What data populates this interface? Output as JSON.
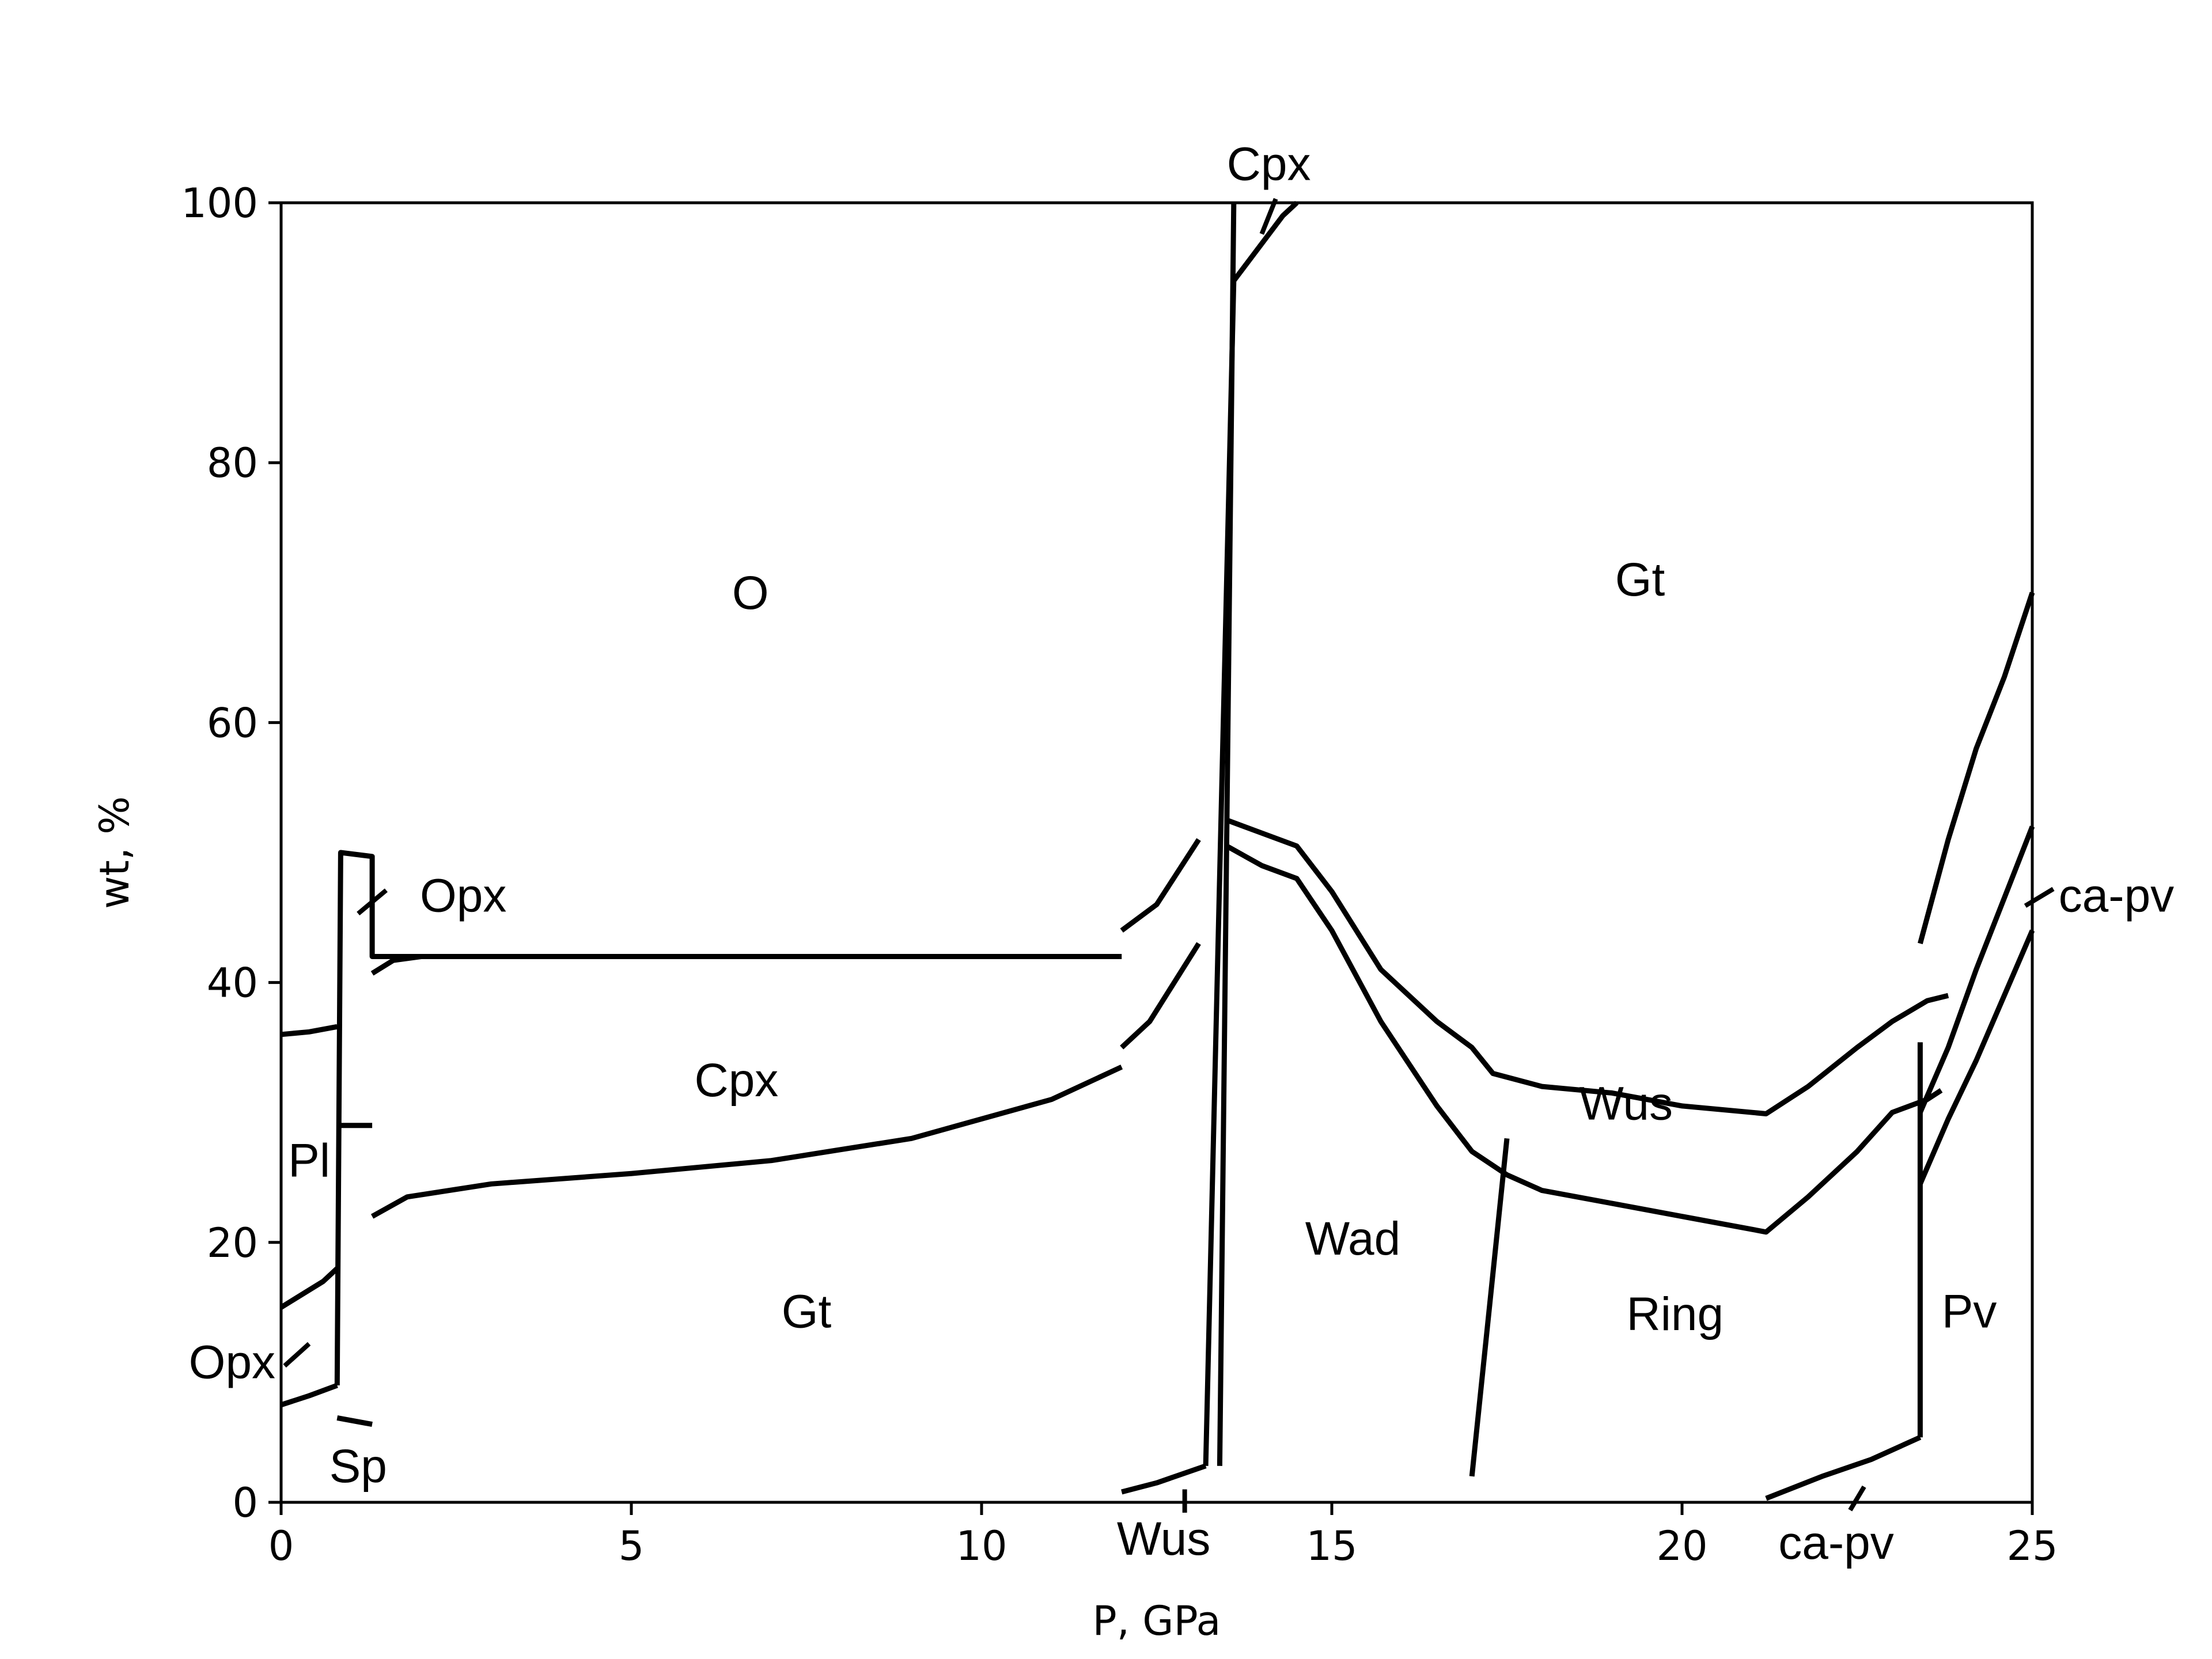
{
  "chart_data": {
    "type": "area",
    "xlabel": "P, GPa",
    "ylabel": "wt, %",
    "xlim": [
      0,
      25
    ],
    "ylim": [
      0,
      100
    ],
    "x_ticks": [
      "0",
      "5",
      "10",
      "15",
      "20",
      "25"
    ],
    "y_ticks": [
      "0",
      "20",
      "40",
      "60",
      "80",
      "100"
    ],
    "grid": false,
    "boundaries": [
      [
        [
          0,
          36
        ],
        [
          0.4,
          36.2
        ],
        [
          0.8,
          36.6
        ]
      ],
      [
        [
          0,
          15
        ],
        [
          0.3,
          16
        ],
        [
          0.6,
          17
        ],
        [
          0.8,
          18
        ]
      ],
      [
        [
          0,
          7.5
        ],
        [
          0.4,
          8.2
        ],
        [
          0.8,
          9
        ]
      ],
      [
        [
          0.8,
          9
        ],
        [
          0.85,
          50
        ],
        [
          1.3,
          49.7
        ],
        [
          1.3,
          42
        ],
        [
          2,
          42
        ],
        [
          5,
          42
        ],
        [
          10,
          42
        ],
        [
          12,
          42
        ]
      ],
      [
        [
          0.85,
          29
        ],
        [
          1.3,
          29
        ]
      ],
      [
        [
          0.8,
          6.5
        ],
        [
          1.3,
          6
        ]
      ],
      [
        [
          1.3,
          22
        ],
        [
          1.8,
          23.5
        ],
        [
          3,
          24.5
        ],
        [
          5,
          25.3
        ],
        [
          7,
          26.3
        ],
        [
          9,
          28
        ],
        [
          11,
          31
        ],
        [
          12,
          33.5
        ]
      ],
      [
        [
          1.3,
          40.7
        ],
        [
          1.6,
          41.7
        ],
        [
          2,
          42
        ]
      ],
      [
        [
          12,
          44
        ],
        [
          12.5,
          46
        ],
        [
          13.1,
          51
        ]
      ],
      [
        [
          12,
          35
        ],
        [
          12.4,
          37
        ],
        [
          13.1,
          43
        ]
      ],
      [
        [
          12,
          0.8
        ],
        [
          12.5,
          1.5
        ],
        [
          13.2,
          2.8
        ]
      ],
      [
        [
          13.2,
          2.8
        ],
        [
          13.6,
          94
        ],
        [
          14.3,
          99
        ],
        [
          14.5,
          100
        ]
      ],
      [
        [
          13.6,
          100
        ],
        [
          13.4,
          2.8
        ]
      ],
      [
        [
          13.5,
          52.5
        ],
        [
          14,
          51.5
        ],
        [
          14.5,
          50.5
        ],
        [
          15,
          47
        ],
        [
          15.7,
          41
        ],
        [
          16.5,
          37
        ],
        [
          17,
          35
        ],
        [
          17.3,
          33
        ],
        [
          18,
          32
        ],
        [
          19,
          31.5
        ],
        [
          20,
          30.5
        ],
        [
          21,
          30
        ],
        [
          21.2,
          29.9
        ],
        [
          21.8,
          32
        ],
        [
          22.5,
          35
        ],
        [
          23,
          37
        ],
        [
          23.5,
          38.6
        ],
        [
          23.8,
          39
        ]
      ],
      [
        [
          13.5,
          50.5
        ],
        [
          14,
          49
        ],
        [
          14.5,
          48
        ],
        [
          15,
          44
        ],
        [
          15.7,
          37
        ],
        [
          16.5,
          30.5
        ],
        [
          17,
          27
        ],
        [
          17.5,
          25.2
        ],
        [
          18,
          24
        ],
        [
          19,
          23
        ],
        [
          20,
          22
        ],
        [
          21,
          21
        ],
        [
          21.2,
          20.8
        ],
        [
          21.8,
          23.5
        ],
        [
          22.5,
          27
        ],
        [
          23,
          30
        ],
        [
          23.5,
          31
        ],
        [
          23.7,
          31.7
        ]
      ],
      [
        [
          17,
          2
        ],
        [
          17.5,
          28
        ]
      ],
      [
        [
          21.2,
          0.3
        ],
        [
          22,
          2
        ],
        [
          22.7,
          3.3
        ],
        [
          23.4,
          5
        ]
      ],
      [
        [
          23.4,
          5
        ],
        [
          23.4,
          35.4
        ]
      ],
      [
        [
          23.4,
          43
        ],
        [
          23.8,
          51
        ],
        [
          24.2,
          58
        ],
        [
          24.6,
          63.5
        ],
        [
          25,
          70
        ]
      ],
      [
        [
          23.4,
          30
        ],
        [
          23.8,
          35
        ],
        [
          24.2,
          41
        ],
        [
          24.6,
          46.5
        ],
        [
          25,
          52
        ]
      ],
      [
        [
          23.4,
          24.5
        ],
        [
          23.8,
          29.5
        ],
        [
          24.2,
          34
        ],
        [
          24.6,
          39
        ],
        [
          25,
          44
        ]
      ]
    ],
    "labels": [
      {
        "text": "O",
        "x": 6.7,
        "y": 70
      },
      {
        "text": "Gt",
        "x": 19.4,
        "y": 71
      },
      {
        "text": "Cpx",
        "x": 6.5,
        "y": 32.5
      },
      {
        "text": "Gt",
        "x": 7.5,
        "y": 14.7
      },
      {
        "text": "Wad",
        "x": 15.3,
        "y": 20.3
      },
      {
        "text": "Wus",
        "x": 19.2,
        "y": 30.7
      },
      {
        "text": "Ring",
        "x": 19.9,
        "y": 14.5
      },
      {
        "text": "Pv",
        "x": 24.1,
        "y": 14.7
      },
      {
        "text": "Pl",
        "x": 0.4,
        "y": 26.3
      },
      {
        "text": "Sp",
        "x": 1.1,
        "y": 2.8
      },
      {
        "text": "Opx",
        "x": 2.6,
        "y": 46.7
      },
      {
        "text": "Opx",
        "x": -0.7,
        "y": 10.8
      },
      {
        "text": "Cpx",
        "x": 14.1,
        "y": 103
      },
      {
        "text": "Wus",
        "x": 12.6,
        "y": -2.8
      },
      {
        "text": "ca-pv",
        "x": 22.2,
        "y": -3.1
      },
      {
        "text": "ca-pv",
        "x": 26.2,
        "y": 46.7
      }
    ]
  }
}
